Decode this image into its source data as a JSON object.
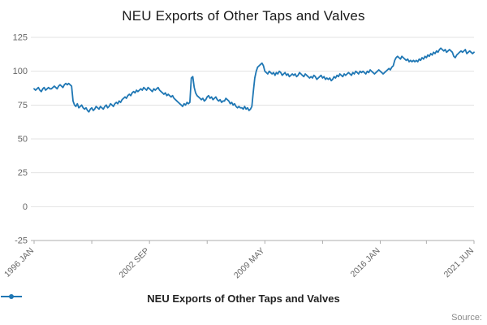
{
  "chart_data": {
    "type": "line",
    "title": "NEU Exports of Other Taps and Valves",
    "series_name": "NEU Exports of Other Taps and Valves",
    "frequency": "monthly",
    "x_start": "1996 JAN",
    "x_end": "2021 JUN",
    "ylim": [
      -25,
      125
    ],
    "y_ticks": [
      -25,
      0,
      25,
      50,
      75,
      100,
      125
    ],
    "x_ticks": [
      {
        "label": "1996 JAN",
        "index": 0
      },
      {
        "label": "2002 SEP",
        "index": 80
      },
      {
        "label": "2009 MAY",
        "index": 160
      },
      {
        "label": "2016 JAN",
        "index": 240
      },
      {
        "label": "2021 JUN",
        "index": 305
      }
    ],
    "minor_tick_indices": [
      40,
      120,
      200,
      272
    ],
    "line_color": "#1f77b4",
    "grid": "horizontal",
    "legend_position": "bottom",
    "values": [
      87,
      86,
      87,
      88,
      86,
      85,
      87,
      88,
      86,
      87,
      88,
      87,
      87,
      88,
      89,
      88,
      87,
      89,
      90,
      89,
      88,
      90,
      91,
      90,
      91,
      90,
      89,
      78,
      75,
      74,
      76,
      73,
      74,
      75,
      73,
      72,
      73,
      71,
      70,
      72,
      73,
      71,
      72,
      74,
      73,
      72,
      74,
      73,
      72,
      74,
      75,
      73,
      74,
      76,
      75,
      74,
      76,
      77,
      76,
      78,
      77,
      79,
      80,
      81,
      80,
      82,
      83,
      82,
      84,
      85,
      84,
      86,
      85,
      86,
      87,
      86,
      88,
      87,
      86,
      88,
      87,
      86,
      85,
      87,
      86,
      87,
      88,
      86,
      85,
      84,
      83,
      84,
      82,
      83,
      82,
      81,
      82,
      80,
      79,
      78,
      77,
      76,
      75,
      74,
      76,
      75,
      77,
      76,
      77,
      95,
      96,
      88,
      84,
      82,
      81,
      80,
      79,
      80,
      78,
      79,
      81,
      82,
      80,
      81,
      79,
      80,
      81,
      79,
      78,
      79,
      77,
      78,
      78,
      80,
      79,
      78,
      76,
      77,
      75,
      76,
      74,
      73,
      74,
      73,
      73,
      72,
      74,
      72,
      73,
      71,
      72,
      74,
      85,
      95,
      100,
      103,
      104,
      105,
      106,
      104,
      100,
      99,
      98,
      100,
      99,
      98,
      99,
      97,
      99,
      98,
      100,
      99,
      97,
      98,
      99,
      97,
      98,
      96,
      97,
      98,
      97,
      98,
      96,
      97,
      99,
      98,
      97,
      96,
      98,
      97,
      96,
      95,
      96,
      95,
      97,
      96,
      94,
      95,
      96,
      97,
      95,
      96,
      94,
      95,
      94,
      95,
      93,
      94,
      96,
      95,
      97,
      96,
      98,
      97,
      96,
      98,
      97,
      98,
      99,
      98,
      97,
      99,
      98,
      100,
      99,
      98,
      100,
      99,
      100,
      99,
      98,
      100,
      99,
      101,
      100,
      99,
      98,
      99,
      100,
      101,
      100,
      99,
      98,
      99,
      100,
      101,
      102,
      101,
      103,
      104,
      108,
      110,
      111,
      110,
      109,
      111,
      110,
      109,
      108,
      109,
      107,
      108,
      107,
      108,
      107,
      108,
      107,
      109,
      108,
      110,
      109,
      111,
      110,
      112,
      111,
      113,
      112,
      114,
      113,
      115,
      114,
      116,
      117,
      116,
      115,
      116,
      114,
      115,
      116,
      115,
      114,
      111,
      110,
      112,
      113,
      114,
      115,
      114,
      115,
      116,
      113,
      114,
      115,
      114,
      113,
      114
    ]
  },
  "legend": {
    "label": "NEU Exports of Other Taps and Valves"
  },
  "footer": {
    "source": "Source:"
  }
}
